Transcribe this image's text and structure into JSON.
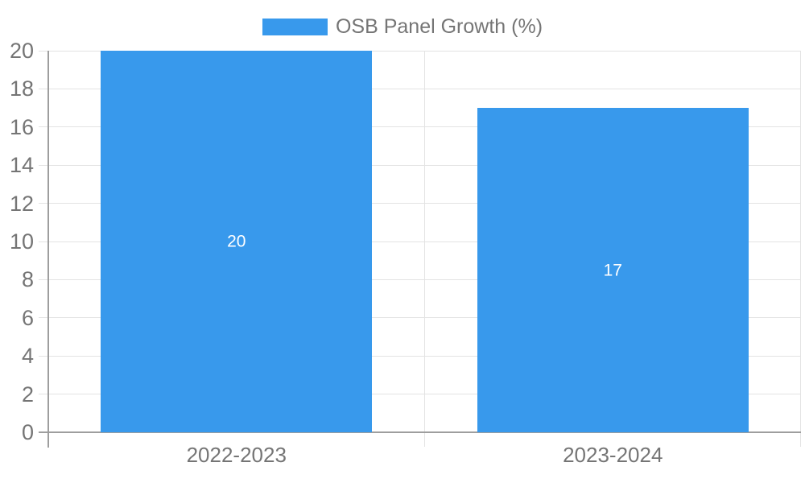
{
  "chart_data": {
    "type": "bar",
    "title": "",
    "legend": {
      "label": "OSB Panel Growth (%)",
      "position": "top"
    },
    "categories": [
      "2022-2023",
      "2023-2024"
    ],
    "values": [
      20,
      17
    ],
    "data_labels": [
      "20",
      "17"
    ],
    "xlabel": "",
    "ylabel": "",
    "ylim": [
      0,
      20
    ],
    "ytick_step": 2,
    "yticks": [
      0,
      2,
      4,
      6,
      8,
      10,
      12,
      14,
      16,
      18,
      20
    ],
    "grid": true,
    "legend_swatch_icon": "legend-swatch"
  },
  "colors": {
    "bar": "#3899ec",
    "text": "#757575",
    "grid": "#e3e3e3",
    "axis": "#9e9e9e",
    "value_label": "#ffffff",
    "background": "#ffffff"
  }
}
